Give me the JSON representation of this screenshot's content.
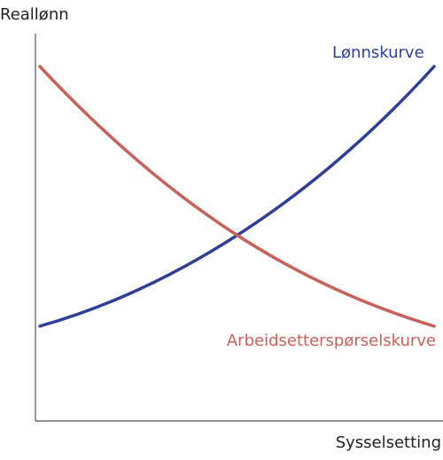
{
  "axes": {
    "y_label": "Reallønn",
    "x_label": "Sysselsetting"
  },
  "curves": [
    {
      "label": "Lønnskurve"
    },
    {
      "label": "Arbeidsetterspørselskurve"
    }
  ]
}
